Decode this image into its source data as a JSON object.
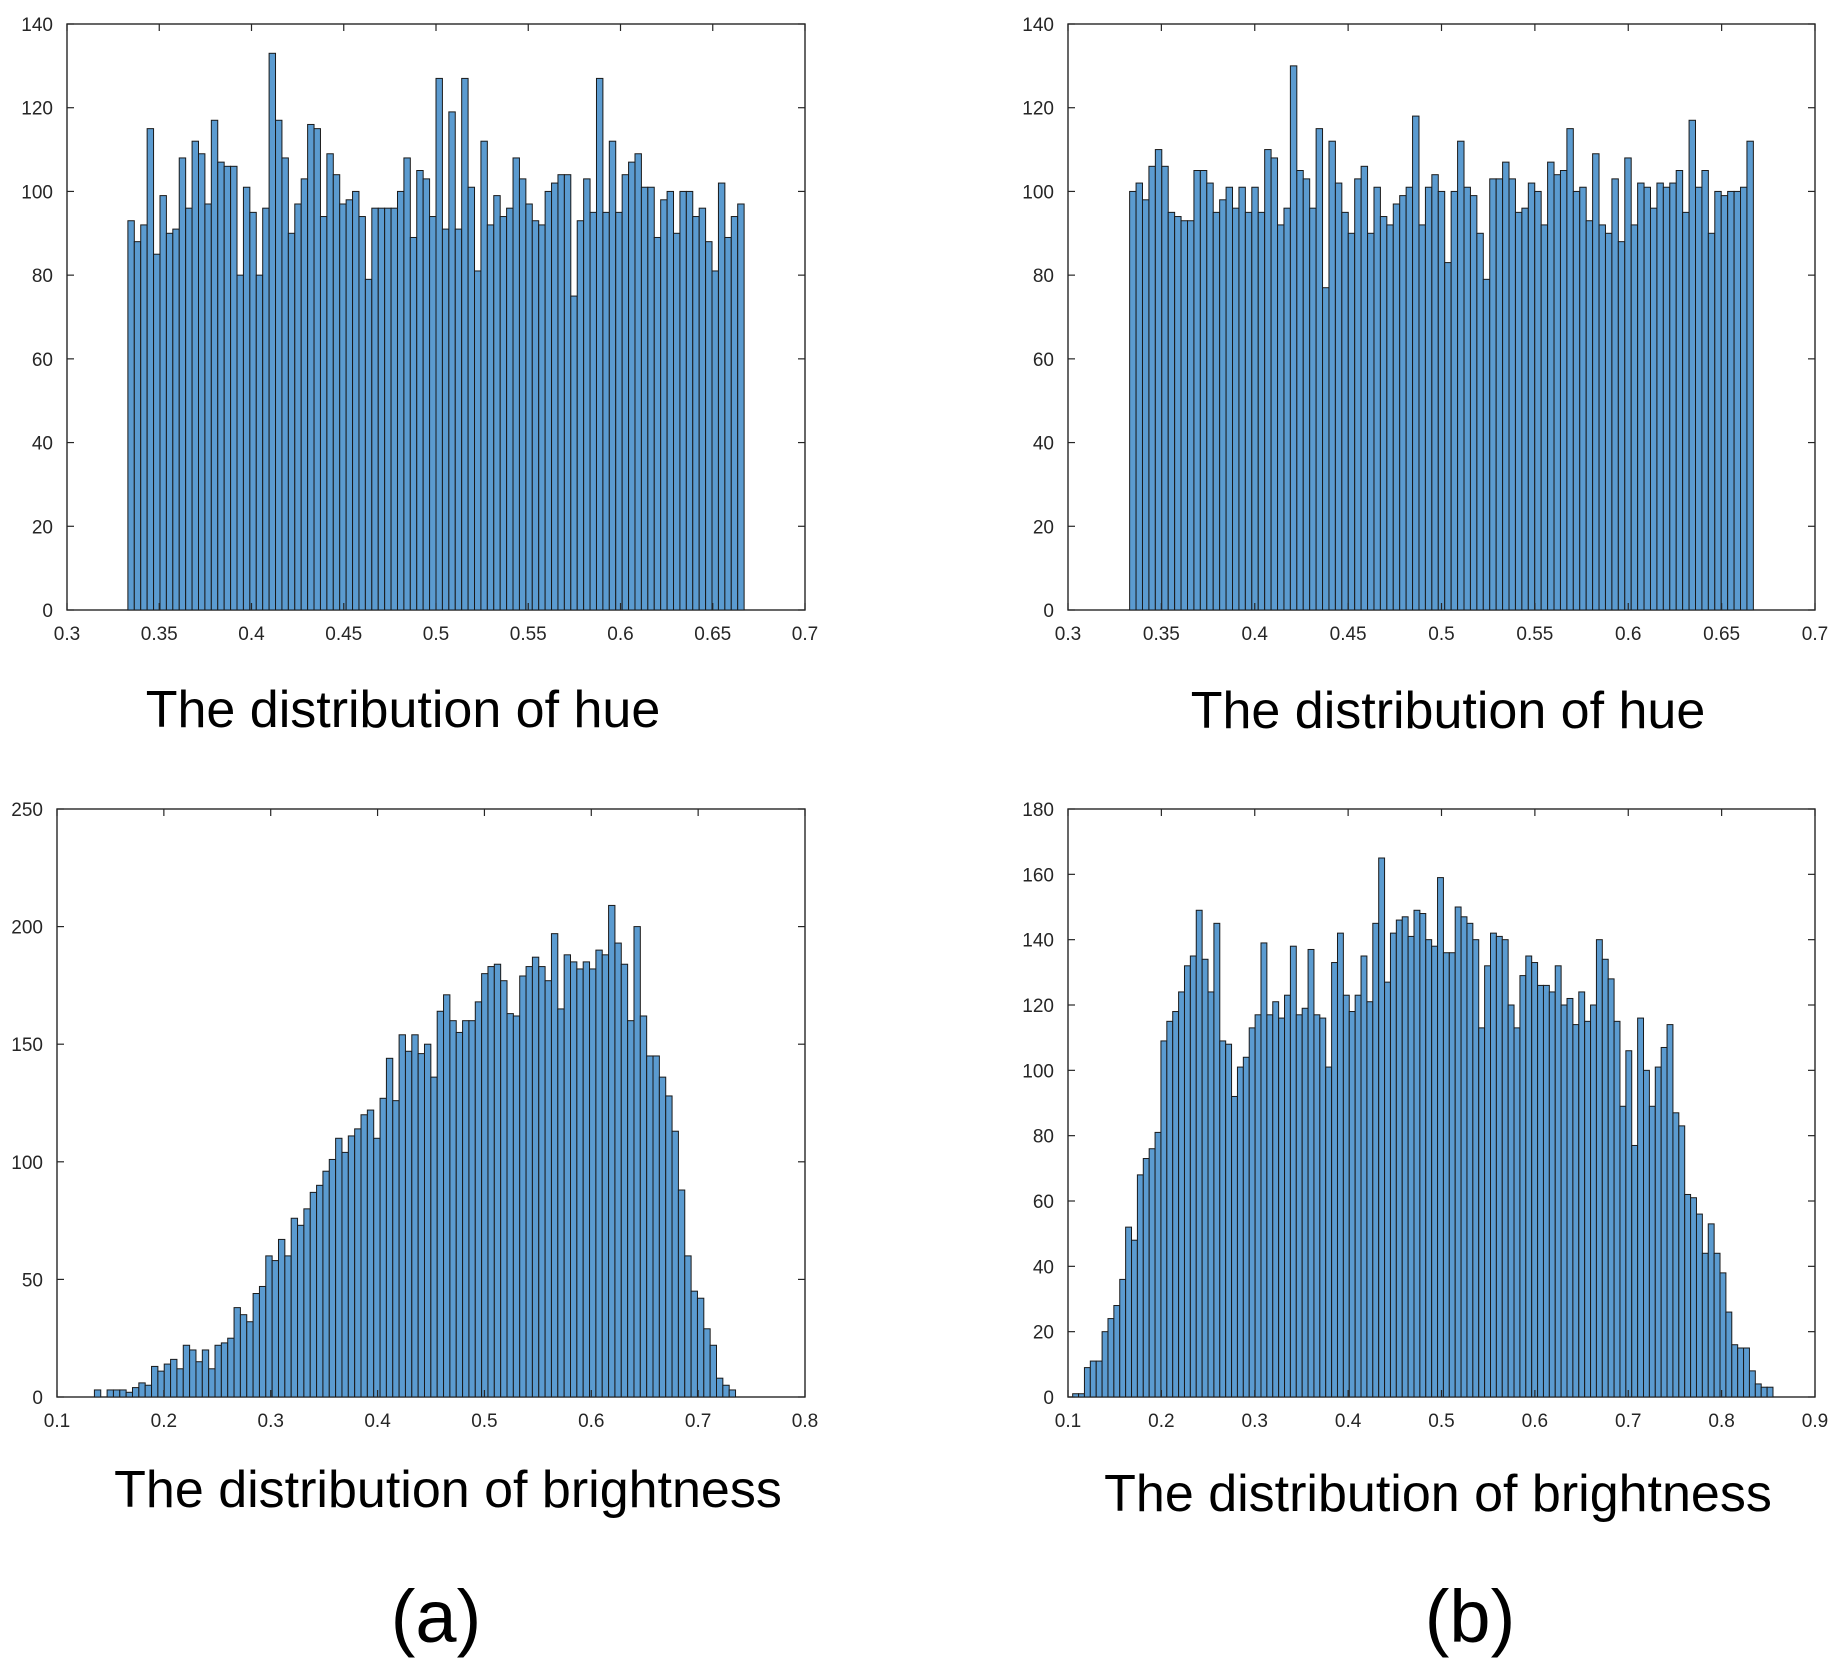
{
  "figure": {
    "panel_labels": [
      "(a)",
      "(b)"
    ],
    "bar_color": "#5b9bd0",
    "bar_edge_color": "#1a1a1a"
  },
  "chart_data": [
    {
      "id": "a-hue",
      "type": "bar",
      "subtype": "histogram",
      "caption": "The distribution of hue",
      "xlim": [
        0.3,
        0.7
      ],
      "ylim": [
        0,
        140
      ],
      "xticks": [
        "0.3",
        "0.35",
        "0.4",
        "0.45",
        "0.5",
        "0.55",
        "0.6",
        "0.65",
        "0.7"
      ],
      "yticks": [
        "0",
        "20",
        "40",
        "60",
        "80",
        "100",
        "120",
        "140"
      ],
      "bins": {
        "start": 0.333,
        "end": 0.667
      },
      "values": [
        93,
        88,
        92,
        115,
        85,
        99,
        90,
        91,
        108,
        96,
        112,
        109,
        97,
        117,
        107,
        106,
        106,
        80,
        101,
        95,
        80,
        96,
        133,
        117,
        108,
        90,
        97,
        103,
        116,
        115,
        94,
        109,
        104,
        97,
        98,
        100,
        94,
        79,
        96,
        96,
        96,
        96,
        100,
        108,
        89,
        105,
        103,
        94,
        127,
        91,
        119,
        91,
        127,
        101,
        81,
        112,
        92,
        99,
        94,
        96,
        108,
        103,
        97,
        93,
        92,
        100,
        102,
        104,
        104,
        75,
        93,
        103,
        95,
        127,
        95,
        112,
        95,
        104,
        107,
        109,
        101,
        101,
        89,
        98,
        100,
        90,
        100,
        100,
        94,
        96,
        88,
        81,
        102,
        89,
        94,
        97
      ]
    },
    {
      "id": "b-hue",
      "type": "bar",
      "subtype": "histogram",
      "caption": "The distribution of hue",
      "xlim": [
        0.3,
        0.7
      ],
      "ylim": [
        0,
        140
      ],
      "xticks": [
        "0.3",
        "0.35",
        "0.4",
        "0.45",
        "0.5",
        "0.55",
        "0.6",
        "0.65",
        "0.7"
      ],
      "yticks": [
        "0",
        "20",
        "40",
        "60",
        "80",
        "100",
        "120",
        "140"
      ],
      "bins": {
        "start": 0.333,
        "end": 0.667
      },
      "values": [
        100,
        102,
        98,
        106,
        110,
        106,
        95,
        94,
        93,
        93,
        105,
        105,
        102,
        95,
        98,
        101,
        96,
        101,
        95,
        101,
        95,
        110,
        108,
        92,
        96,
        130,
        105,
        103,
        96,
        115,
        77,
        112,
        102,
        95,
        90,
        103,
        106,
        90,
        101,
        94,
        92,
        97,
        99,
        101,
        118,
        92,
        101,
        104,
        100,
        83,
        100,
        112,
        101,
        99,
        90,
        79,
        103,
        103,
        107,
        103,
        95,
        96,
        102,
        100,
        92,
        107,
        104,
        105,
        115,
        100,
        101,
        93,
        109,
        92,
        90,
        103,
        88,
        108,
        92,
        102,
        101,
        96,
        102,
        101,
        102,
        105,
        95,
        117,
        101,
        105,
        90,
        100,
        99,
        100,
        100,
        101,
        112
      ]
    },
    {
      "id": "a-brightness",
      "type": "bar",
      "subtype": "histogram",
      "caption": "The distribution of brightness",
      "xlim": [
        0.1,
        0.8
      ],
      "ylim": [
        0,
        250
      ],
      "xticks": [
        "0.1",
        "0.2",
        "0.3",
        "0.4",
        "0.5",
        "0.6",
        "0.7",
        "0.8"
      ],
      "yticks": [
        "0",
        "50",
        "100",
        "150",
        "200",
        "250"
      ],
      "bins": {
        "start": 0.135,
        "end": 0.735
      },
      "values": [
        3,
        0,
        3,
        3,
        3,
        2,
        4,
        6,
        5,
        13,
        11,
        14,
        16,
        12,
        22,
        20,
        15,
        20,
        12,
        22,
        23,
        25,
        38,
        35,
        32,
        44,
        47,
        60,
        58,
        67,
        60,
        76,
        73,
        80,
        87,
        90,
        96,
        101,
        110,
        104,
        111,
        114,
        120,
        122,
        110,
        127,
        144,
        126,
        154,
        147,
        154,
        146,
        150,
        136,
        164,
        171,
        160,
        155,
        160,
        160,
        168,
        180,
        183,
        184,
        177,
        163,
        162,
        179,
        183,
        187,
        183,
        177,
        197,
        165,
        188,
        185,
        182,
        185,
        182,
        190,
        188,
        209,
        193,
        184,
        160,
        200,
        162,
        145,
        145,
        136,
        128,
        113,
        88,
        60,
        45,
        42,
        29,
        22,
        8,
        5,
        3
      ]
    },
    {
      "id": "b-brightness",
      "type": "bar",
      "subtype": "histogram",
      "caption": "The distribution of brightness",
      "xlim": [
        0.1,
        0.9
      ],
      "ylim": [
        0,
        180
      ],
      "xticks": [
        "0.1",
        "0.2",
        "0.3",
        "0.4",
        "0.5",
        "0.6",
        "0.7",
        "0.8",
        "0.9"
      ],
      "yticks": [
        "0",
        "20",
        "40",
        "60",
        "80",
        "100",
        "120",
        "140",
        "160",
        "180"
      ],
      "bins": {
        "start": 0.105,
        "end": 0.855
      },
      "values": [
        1,
        1,
        9,
        11,
        11,
        20,
        24,
        28,
        36,
        52,
        48,
        68,
        73,
        76,
        81,
        109,
        115,
        118,
        124,
        132,
        135,
        149,
        134,
        124,
        145,
        109,
        108,
        92,
        101,
        104,
        113,
        117,
        139,
        117,
        121,
        116,
        123,
        138,
        117,
        119,
        137,
        117,
        116,
        101,
        133,
        142,
        123,
        118,
        123,
        135,
        121,
        145,
        165,
        127,
        142,
        146,
        147,
        141,
        149,
        148,
        140,
        138,
        159,
        136,
        136,
        150,
        147,
        145,
        140,
        113,
        132,
        142,
        141,
        140,
        120,
        113,
        129,
        135,
        133,
        126,
        126,
        124,
        132,
        120,
        122,
        114,
        124,
        115,
        120,
        140,
        134,
        128,
        115,
        89,
        106,
        77,
        116,
        100,
        89,
        101,
        107,
        114,
        87,
        83,
        62,
        61,
        56,
        44,
        53,
        44,
        38,
        26,
        16,
        15,
        15,
        8,
        4,
        3,
        3
      ]
    }
  ]
}
